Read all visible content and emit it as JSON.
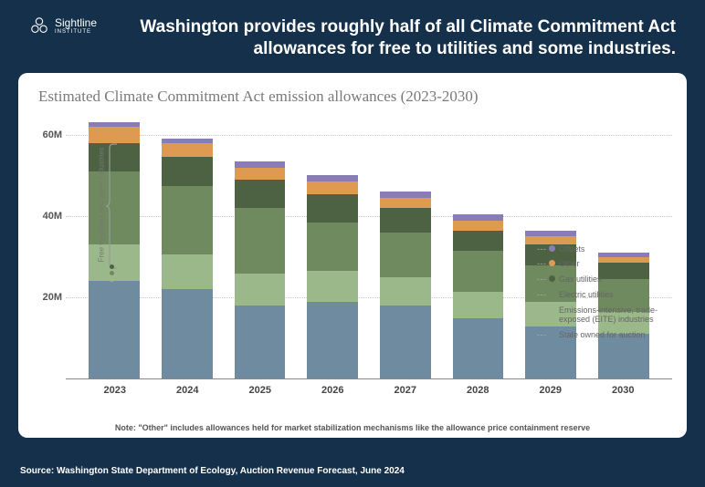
{
  "branding": {
    "name": "Sightline",
    "subname": "INSTITUTE"
  },
  "headline": "Washington provides roughly half of all Climate Commitment Act allowances for free to utilities and some industries.",
  "chart": {
    "type": "stacked-bar",
    "title": "Estimated Climate Commitment Act emission allowances (2023-2030)",
    "y_axis": {
      "min": 0,
      "max": 65,
      "ticks": [
        {
          "v": 20,
          "label": "20M"
        },
        {
          "v": 40,
          "label": "40M"
        },
        {
          "v": 60,
          "label": "60M"
        }
      ],
      "grid_color": "#cccccc"
    },
    "categories": [
      "2023",
      "2024",
      "2025",
      "2026",
      "2027",
      "2028",
      "2029",
      "2030"
    ],
    "series": [
      {
        "key": "state_auction",
        "label": "State owned for auction",
        "color": "#6e8ba0"
      },
      {
        "key": "eite",
        "label": "Emissions-intensive, trade-exposed (EITE) industries",
        "color": "#9ab889"
      },
      {
        "key": "electric",
        "label": "Electric utilities",
        "color": "#6f8a5f"
      },
      {
        "key": "gas",
        "label": "Gas utilities",
        "color": "#4d6242"
      },
      {
        "key": "other",
        "label": "Other",
        "color": "#de9a52"
      },
      {
        "key": "offsets",
        "label": "Offsets",
        "color": "#8a7cb8"
      }
    ],
    "data": {
      "2023": {
        "state_auction": 24,
        "eite": 9,
        "electric": 18,
        "gas": 7,
        "other": 4,
        "offsets": 1
      },
      "2024": {
        "state_auction": 22,
        "eite": 8.5,
        "electric": 17,
        "gas": 7,
        "other": 3.5,
        "offsets": 1
      },
      "2025": {
        "state_auction": 18,
        "eite": 8,
        "electric": 16,
        "gas": 7,
        "other": 3,
        "offsets": 1.5
      },
      "2026": {
        "state_auction": 19,
        "eite": 7.5,
        "electric": 12,
        "gas": 7,
        "other": 3,
        "offsets": 1.5
      },
      "2027": {
        "state_auction": 18,
        "eite": 7,
        "electric": 11,
        "gas": 6,
        "other": 2.5,
        "offsets": 1.5
      },
      "2028": {
        "state_auction": 15,
        "eite": 6.5,
        "electric": 10,
        "gas": 5,
        "other": 2.5,
        "offsets": 1.5
      },
      "2029": {
        "state_auction": 13,
        "eite": 6,
        "electric": 9,
        "gas": 5,
        "other": 2,
        "offsets": 1.5
      },
      "2030": {
        "state_auction": 11,
        "eite": 5.5,
        "electric": 8,
        "gas": 4,
        "other": 1.5,
        "offsets": 1
      }
    },
    "bracket": {
      "label": "Free to utilities and some industries",
      "dot_colors": [
        "#4d6242",
        "#6f8a5f",
        "#9ab889"
      ]
    },
    "note": "Note: \"Other\" includes allowances held for market stabilization mechanisms like the allowance price containment reserve",
    "background_color": "#ffffff",
    "bar_width": 0.7
  },
  "source": "Source: Washington State Department of Ecology, Auction Revenue Forecast, June 2024"
}
